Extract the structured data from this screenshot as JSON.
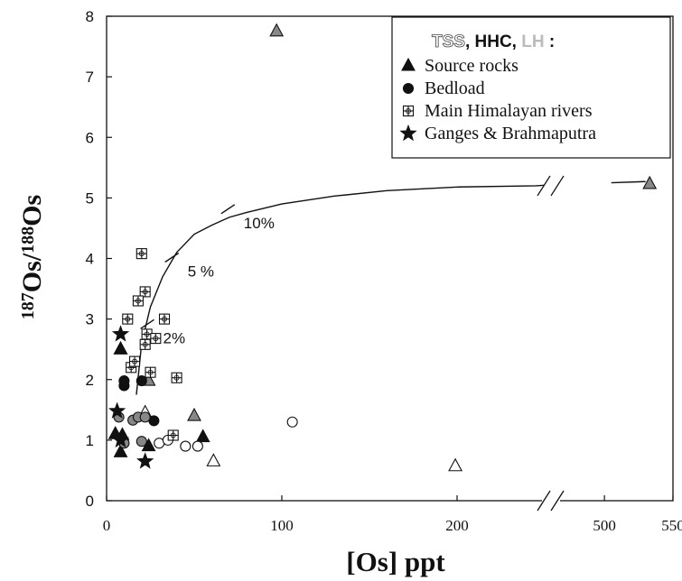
{
  "chart_data": {
    "type": "scatter",
    "xlabel": "[Os] ppt",
    "ylabel": "187Os/188Os",
    "ylabel_parts": {
      "m1": "187",
      "e1": "Os/",
      "m2": "188",
      "e2": "Os"
    },
    "x_ticks_left": [
      0,
      100,
      200
    ],
    "x_ticks_right": [
      500,
      550
    ],
    "xlim_left": [
      0,
      250
    ],
    "xlim_right": [
      465,
      550
    ],
    "x_break": true,
    "ylim": [
      0,
      8
    ],
    "y_ticks": [
      0,
      1,
      2,
      3,
      4,
      5,
      6,
      7,
      8
    ],
    "grid": false,
    "legend": {
      "position": "top-right",
      "title_prefix": "TSS",
      "title_main": ", HHC, ",
      "title_suffix": "LH",
      "title_colon": ":",
      "items": [
        {
          "label": "Source rocks",
          "marker": "triangle"
        },
        {
          "label": "Bedload",
          "marker": "circle"
        },
        {
          "label": "Main Himalayan rivers",
          "marker": "cross-square"
        },
        {
          "label": "Ganges & Brahmaputra",
          "marker": "star"
        }
      ]
    },
    "mixing_curve": {
      "points": [
        [
          17,
          1.75
        ],
        [
          20,
          2.6
        ],
        [
          25,
          3.2
        ],
        [
          32,
          3.7
        ],
        [
          40,
          4.1
        ],
        [
          50,
          4.4
        ],
        [
          60,
          4.55
        ],
        [
          70,
          4.68
        ],
        [
          80,
          4.76
        ],
        [
          100,
          4.9
        ],
        [
          130,
          5.03
        ],
        [
          160,
          5.12
        ],
        [
          200,
          5.18
        ],
        [
          245,
          5.2
        ],
        [
          250,
          5.21
        ],
        [
          505,
          5.25
        ],
        [
          530,
          5.27
        ]
      ],
      "labels": [
        {
          "text": "2%",
          "x": 24,
          "y": 2.9
        },
        {
          "text": "5 %",
          "x": 38,
          "y": 4.0
        },
        {
          "text": "10%",
          "x": 70,
          "y": 4.8
        }
      ]
    },
    "series": [
      {
        "name": "Source rocks",
        "marker": "triangle",
        "fill": "#111111",
        "points": [
          [
            5,
            1.1
          ],
          [
            8,
            2.5
          ],
          [
            8,
            2.5
          ],
          [
            8,
            0.8
          ],
          [
            24,
            0.9
          ],
          [
            55,
            1.05
          ],
          [
            9,
            1.08
          ]
        ]
      },
      {
        "name": "Source rocks",
        "marker": "triangle",
        "fill": "#888888",
        "points": [
          [
            97,
            7.75
          ],
          [
            24,
            1.98
          ],
          [
            50,
            1.4
          ],
          [
            533,
            5.23
          ]
        ]
      },
      {
        "name": "Source rocks",
        "marker": "triangle",
        "fill": "#ffffff",
        "points": [
          [
            22,
            1.45
          ],
          [
            61,
            0.65
          ],
          [
            199,
            0.57
          ]
        ]
      },
      {
        "name": "Bedload",
        "marker": "circle",
        "fill": "#111111",
        "points": [
          [
            10,
            1.9
          ],
          [
            10,
            1.98
          ],
          [
            20,
            1.98
          ],
          [
            27,
            1.32
          ]
        ]
      },
      {
        "name": "Bedload",
        "marker": "circle",
        "fill": "#888888",
        "points": [
          [
            7,
            1.38
          ],
          [
            10,
            0.95
          ],
          [
            15,
            1.33
          ],
          [
            18,
            1.38
          ],
          [
            20,
            0.98
          ],
          [
            22,
            1.38
          ]
        ]
      },
      {
        "name": "Bedload",
        "marker": "circle",
        "fill": "#ffffff",
        "points": [
          [
            30,
            0.95
          ],
          [
            35,
            1.0
          ],
          [
            45,
            0.9
          ],
          [
            52,
            0.9
          ],
          [
            106,
            1.3
          ]
        ]
      },
      {
        "name": "Main Himalayan rivers",
        "marker": "cross-square",
        "fill": "#ffffff",
        "points": [
          [
            20,
            4.08
          ],
          [
            22,
            3.45
          ],
          [
            18,
            3.3
          ],
          [
            12,
            3.0
          ],
          [
            33,
            3.0
          ],
          [
            23,
            2.75
          ],
          [
            28,
            2.68
          ],
          [
            22,
            2.58
          ],
          [
            14,
            2.2
          ],
          [
            16,
            2.3
          ],
          [
            25,
            2.12
          ],
          [
            40,
            2.03
          ],
          [
            38,
            1.08
          ]
        ]
      },
      {
        "name": "Ganges & Brahmaputra",
        "marker": "star",
        "fill": "#111111",
        "points": [
          [
            8,
            2.75
          ],
          [
            6,
            1.48
          ],
          [
            8,
            1.0
          ],
          [
            22,
            0.65
          ]
        ]
      }
    ]
  }
}
